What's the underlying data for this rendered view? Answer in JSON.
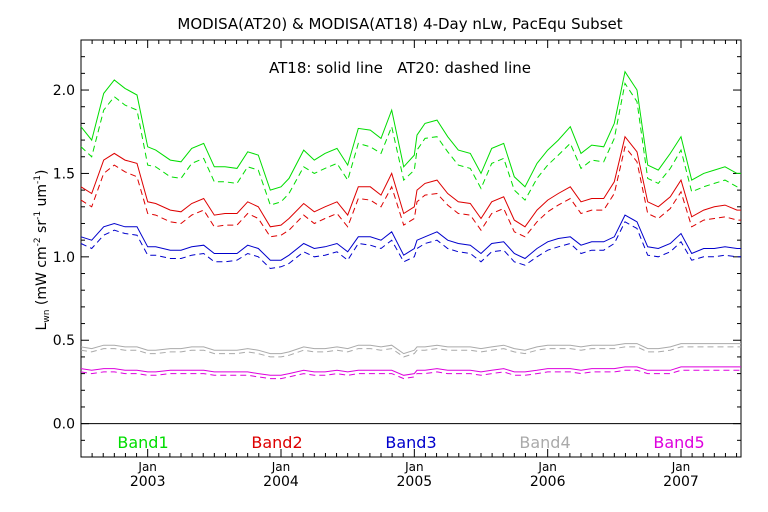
{
  "chart_data": {
    "type": "line",
    "title": "MODISA(AT20) & MODISA(AT18) 4-Day nLw, PacEqu Subset",
    "annotation": "AT18: solid line   AT20: dashed line",
    "ylabel": "L",
    "ylabel_sub": "wn",
    "ylabel_units": "(mW cm",
    "ylabel_units_mid": " sr",
    "ylabel_units_end": " um",
    "ylabel_close": ")",
    "ylabel_exp_a": "-2",
    "ylabel_exp_b": "-1",
    "ylabel_exp_c": "-1",
    "ylim": [
      -0.2,
      2.3
    ],
    "yticks": [
      "0.0",
      "0.5",
      "1.0",
      "1.5",
      "2.0"
    ],
    "ytick_values": [
      0.0,
      0.5,
      1.0,
      1.5,
      2.0
    ],
    "xlim": [
      2002.5,
      2007.45
    ],
    "xticks": [
      {
        "month": "Jan",
        "year": "2003",
        "x": 2003.0
      },
      {
        "month": "Jan",
        "year": "2004",
        "x": 2004.0
      },
      {
        "month": "Jan",
        "year": "2005",
        "x": 2005.0
      },
      {
        "month": "Jan",
        "year": "2006",
        "x": 2006.0
      },
      {
        "month": "Jan",
        "year": "2007",
        "x": 2007.0
      }
    ],
    "grid": false,
    "legend_placement": "bottom-inside",
    "x": [
      2002.5,
      2002.58,
      2002.67,
      2002.75,
      2002.83,
      2002.92,
      2003.0,
      2003.06,
      2003.17,
      2003.25,
      2003.33,
      2003.42,
      2003.5,
      2003.58,
      2003.67,
      2003.75,
      2003.83,
      2003.92,
      2004.0,
      2004.06,
      2004.17,
      2004.25,
      2004.33,
      2004.42,
      2004.5,
      2004.58,
      2004.67,
      2004.75,
      2004.83,
      2004.92,
      2005.0,
      2005.02,
      2005.08,
      2005.17,
      2005.25,
      2005.33,
      2005.42,
      2005.5,
      2005.58,
      2005.67,
      2005.75,
      2005.83,
      2005.92,
      2006.0,
      2006.08,
      2006.17,
      2006.25,
      2006.33,
      2006.42,
      2006.5,
      2006.58,
      2006.67,
      2006.75,
      2006.83,
      2006.92,
      2007.0,
      2007.08,
      2007.17,
      2007.25,
      2007.33,
      2007.42,
      2007.45
    ],
    "series": [
      {
        "name": "Band1",
        "color": "#00dd00",
        "solid": [
          1.78,
          1.7,
          1.98,
          2.06,
          2.01,
          1.97,
          1.66,
          1.64,
          1.58,
          1.57,
          1.65,
          1.68,
          1.54,
          1.54,
          1.53,
          1.63,
          1.61,
          1.4,
          1.42,
          1.47,
          1.64,
          1.58,
          1.62,
          1.65,
          1.55,
          1.77,
          1.76,
          1.71,
          1.88,
          1.54,
          1.61,
          1.73,
          1.8,
          1.82,
          1.72,
          1.64,
          1.62,
          1.5,
          1.65,
          1.68,
          1.48,
          1.42,
          1.56,
          1.64,
          1.7,
          1.78,
          1.62,
          1.67,
          1.66,
          1.8,
          2.11,
          2.0,
          1.55,
          1.52,
          1.62,
          1.72,
          1.46,
          1.5,
          1.52,
          1.54,
          1.5,
          1.5
        ],
        "dashed": [
          1.66,
          1.6,
          1.88,
          1.96,
          1.91,
          1.88,
          1.55,
          1.54,
          1.48,
          1.47,
          1.56,
          1.59,
          1.45,
          1.45,
          1.44,
          1.54,
          1.52,
          1.31,
          1.33,
          1.38,
          1.54,
          1.5,
          1.53,
          1.56,
          1.46,
          1.68,
          1.66,
          1.62,
          1.78,
          1.46,
          1.52,
          1.64,
          1.71,
          1.72,
          1.63,
          1.55,
          1.53,
          1.41,
          1.56,
          1.59,
          1.4,
          1.34,
          1.47,
          1.55,
          1.61,
          1.68,
          1.53,
          1.58,
          1.57,
          1.71,
          2.04,
          1.93,
          1.47,
          1.44,
          1.53,
          1.64,
          1.39,
          1.42,
          1.44,
          1.46,
          1.42,
          1.42
        ]
      },
      {
        "name": "Band2",
        "color": "#dd0000",
        "solid": [
          1.42,
          1.38,
          1.58,
          1.62,
          1.58,
          1.56,
          1.33,
          1.32,
          1.28,
          1.27,
          1.32,
          1.35,
          1.25,
          1.26,
          1.26,
          1.33,
          1.3,
          1.18,
          1.19,
          1.23,
          1.32,
          1.27,
          1.3,
          1.33,
          1.25,
          1.42,
          1.42,
          1.37,
          1.5,
          1.26,
          1.3,
          1.4,
          1.44,
          1.46,
          1.38,
          1.33,
          1.32,
          1.23,
          1.33,
          1.36,
          1.22,
          1.18,
          1.28,
          1.34,
          1.38,
          1.42,
          1.33,
          1.35,
          1.35,
          1.45,
          1.72,
          1.63,
          1.33,
          1.3,
          1.36,
          1.46,
          1.24,
          1.28,
          1.3,
          1.31,
          1.28,
          1.28
        ],
        "dashed": [
          1.34,
          1.3,
          1.5,
          1.55,
          1.51,
          1.48,
          1.26,
          1.25,
          1.21,
          1.2,
          1.25,
          1.28,
          1.18,
          1.19,
          1.19,
          1.26,
          1.23,
          1.12,
          1.13,
          1.16,
          1.25,
          1.2,
          1.23,
          1.26,
          1.18,
          1.35,
          1.34,
          1.3,
          1.42,
          1.19,
          1.23,
          1.33,
          1.37,
          1.38,
          1.31,
          1.26,
          1.25,
          1.16,
          1.26,
          1.29,
          1.15,
          1.12,
          1.21,
          1.27,
          1.31,
          1.35,
          1.26,
          1.28,
          1.28,
          1.38,
          1.66,
          1.57,
          1.26,
          1.23,
          1.29,
          1.39,
          1.18,
          1.22,
          1.23,
          1.24,
          1.22,
          1.22
        ]
      },
      {
        "name": "Band3",
        "color": "#0000cc",
        "solid": [
          1.12,
          1.1,
          1.18,
          1.2,
          1.18,
          1.18,
          1.06,
          1.06,
          1.04,
          1.04,
          1.06,
          1.07,
          1.02,
          1.02,
          1.02,
          1.07,
          1.05,
          0.98,
          0.98,
          1.01,
          1.08,
          1.05,
          1.06,
          1.08,
          1.03,
          1.12,
          1.12,
          1.1,
          1.15,
          1.01,
          1.05,
          1.1,
          1.12,
          1.15,
          1.1,
          1.08,
          1.07,
          1.02,
          1.08,
          1.09,
          1.02,
          0.99,
          1.05,
          1.09,
          1.11,
          1.12,
          1.07,
          1.09,
          1.09,
          1.12,
          1.25,
          1.21,
          1.06,
          1.05,
          1.08,
          1.14,
          1.02,
          1.05,
          1.05,
          1.06,
          1.05,
          1.05
        ],
        "dashed": [
          1.08,
          1.05,
          1.13,
          1.16,
          1.14,
          1.13,
          1.01,
          1.01,
          0.99,
          0.99,
          1.01,
          1.02,
          0.97,
          0.97,
          0.98,
          1.02,
          1.0,
          0.93,
          0.94,
          0.96,
          1.03,
          1.0,
          1.01,
          1.03,
          0.98,
          1.08,
          1.07,
          1.05,
          1.1,
          0.97,
          1.0,
          1.05,
          1.08,
          1.1,
          1.05,
          1.03,
          1.02,
          0.97,
          1.03,
          1.04,
          0.97,
          0.95,
          1.0,
          1.04,
          1.06,
          1.08,
          1.02,
          1.04,
          1.04,
          1.08,
          1.21,
          1.17,
          1.01,
          1.0,
          1.03,
          1.09,
          0.98,
          1.0,
          1.0,
          1.01,
          1.0,
          1.0
        ]
      },
      {
        "name": "Band4",
        "color": "#aaaaaa",
        "solid": [
          0.46,
          0.45,
          0.47,
          0.47,
          0.46,
          0.46,
          0.44,
          0.44,
          0.45,
          0.45,
          0.46,
          0.46,
          0.44,
          0.44,
          0.44,
          0.45,
          0.44,
          0.42,
          0.42,
          0.43,
          0.46,
          0.45,
          0.45,
          0.46,
          0.45,
          0.47,
          0.47,
          0.46,
          0.47,
          0.42,
          0.44,
          0.46,
          0.46,
          0.47,
          0.46,
          0.46,
          0.46,
          0.45,
          0.46,
          0.47,
          0.45,
          0.44,
          0.46,
          0.47,
          0.47,
          0.47,
          0.46,
          0.47,
          0.47,
          0.47,
          0.48,
          0.48,
          0.45,
          0.45,
          0.46,
          0.48,
          0.48,
          0.48,
          0.48,
          0.48,
          0.48,
          0.48
        ],
        "dashed": [
          0.44,
          0.43,
          0.45,
          0.45,
          0.44,
          0.44,
          0.42,
          0.42,
          0.43,
          0.43,
          0.44,
          0.44,
          0.42,
          0.42,
          0.42,
          0.43,
          0.42,
          0.4,
          0.4,
          0.41,
          0.44,
          0.43,
          0.43,
          0.44,
          0.43,
          0.45,
          0.45,
          0.44,
          0.45,
          0.4,
          0.42,
          0.44,
          0.44,
          0.45,
          0.44,
          0.44,
          0.44,
          0.43,
          0.44,
          0.45,
          0.43,
          0.42,
          0.44,
          0.45,
          0.45,
          0.45,
          0.44,
          0.45,
          0.45,
          0.45,
          0.46,
          0.46,
          0.43,
          0.43,
          0.44,
          0.46,
          0.46,
          0.46,
          0.46,
          0.46,
          0.46,
          0.46
        ]
      },
      {
        "name": "Band5",
        "color": "#dd00dd",
        "solid": [
          0.33,
          0.32,
          0.33,
          0.33,
          0.32,
          0.32,
          0.31,
          0.31,
          0.32,
          0.32,
          0.32,
          0.32,
          0.31,
          0.31,
          0.31,
          0.31,
          0.3,
          0.29,
          0.29,
          0.3,
          0.32,
          0.31,
          0.31,
          0.32,
          0.31,
          0.32,
          0.32,
          0.32,
          0.32,
          0.29,
          0.3,
          0.32,
          0.32,
          0.33,
          0.32,
          0.32,
          0.32,
          0.31,
          0.32,
          0.33,
          0.31,
          0.31,
          0.32,
          0.33,
          0.33,
          0.33,
          0.32,
          0.33,
          0.33,
          0.33,
          0.34,
          0.34,
          0.32,
          0.32,
          0.32,
          0.34,
          0.34,
          0.34,
          0.34,
          0.34,
          0.34,
          0.34
        ],
        "dashed": [
          0.31,
          0.3,
          0.31,
          0.31,
          0.3,
          0.3,
          0.29,
          0.29,
          0.3,
          0.3,
          0.3,
          0.3,
          0.29,
          0.29,
          0.29,
          0.29,
          0.28,
          0.27,
          0.27,
          0.28,
          0.3,
          0.29,
          0.29,
          0.3,
          0.29,
          0.3,
          0.3,
          0.3,
          0.3,
          0.27,
          0.28,
          0.3,
          0.3,
          0.31,
          0.3,
          0.3,
          0.3,
          0.29,
          0.3,
          0.31,
          0.29,
          0.29,
          0.3,
          0.31,
          0.31,
          0.31,
          0.3,
          0.31,
          0.31,
          0.31,
          0.32,
          0.32,
          0.3,
          0.3,
          0.3,
          0.32,
          0.32,
          0.32,
          0.32,
          0.32,
          0.32,
          0.32
        ]
      }
    ]
  }
}
